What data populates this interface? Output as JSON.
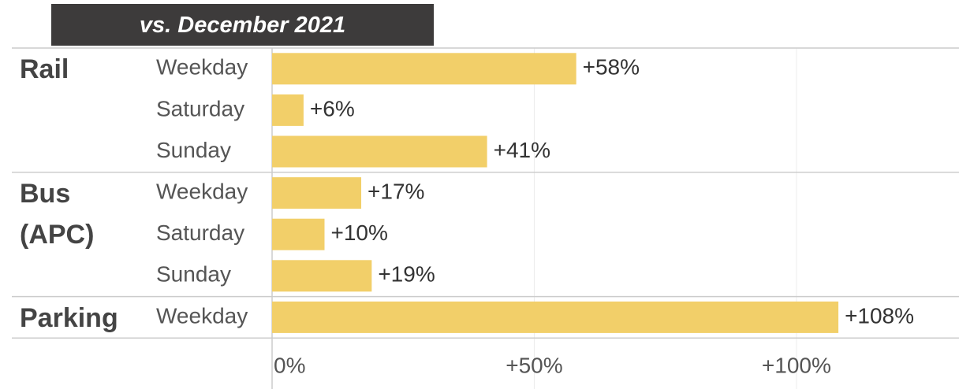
{
  "chart_data": {
    "type": "bar",
    "title": "vs. December 2021",
    "groups": [
      {
        "name": "Rail",
        "categories": [
          "Weekday",
          "Saturday",
          "Sunday"
        ],
        "values": [
          58,
          6,
          41
        ],
        "value_labels": [
          "+58%",
          "+6%",
          "+41%"
        ]
      },
      {
        "name": "Bus (APC)",
        "categories": [
          "Weekday",
          "Saturday",
          "Sunday"
        ],
        "values": [
          17,
          10,
          19
        ],
        "value_labels": [
          "+17%",
          "+10%",
          "+19%"
        ]
      },
      {
        "name": "Parking",
        "categories": [
          "Weekday"
        ],
        "values": [
          108
        ],
        "value_labels": [
          "+108%"
        ]
      }
    ],
    "color": "#f2cf69",
    "xlim": [
      0,
      131
    ],
    "xticks": [
      {
        "value": 0,
        "label": "0%"
      },
      {
        "value": 50,
        "label": "+50%"
      },
      {
        "value": 100,
        "label": "+100%"
      }
    ],
    "grid": true
  }
}
